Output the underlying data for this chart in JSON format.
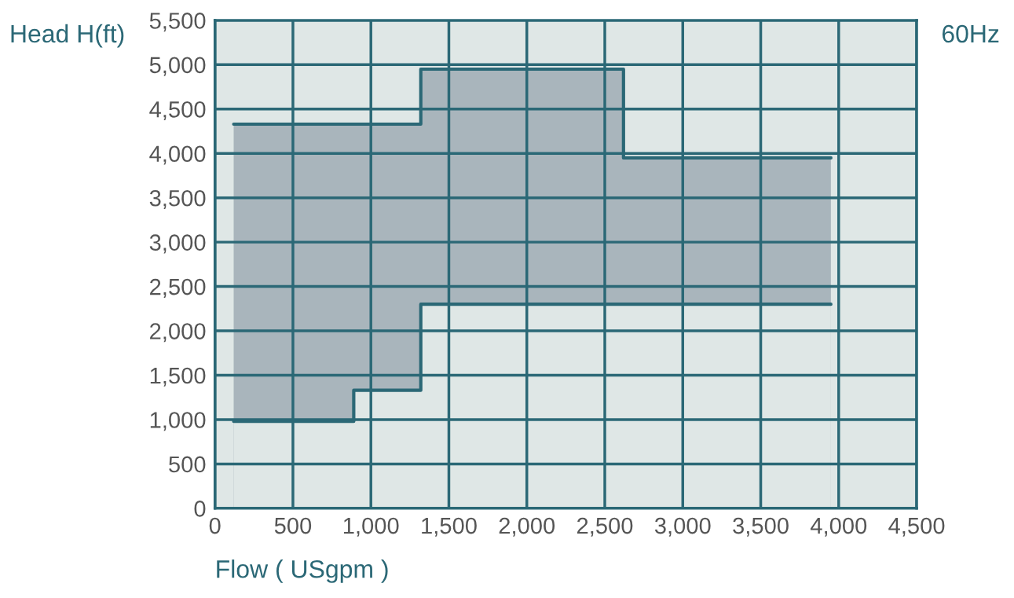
{
  "chart_data": {
    "type": "area",
    "xlabel": "Flow ( USgpm )",
    "ylabel": "Head H(ft)",
    "annotations": [
      "60Hz"
    ],
    "series": [
      {
        "color": "#a9b5bc",
        "x": [
          120,
          1320,
          2620,
          3950
        ],
        "values": [
          4330,
          4950,
          3950,
          3950
        ]
      },
      {
        "color": "#dfe7e6",
        "x": [
          120,
          890,
          1320,
          3950
        ],
        "values": [
          980,
          1330,
          2300,
          2300
        ]
      },
      {
        "type": "step",
        "color": "#2b6876",
        "x": [
          120,
          1320,
          2620,
          3950
        ],
        "values": [
          4330,
          4950,
          3950,
          3950
        ]
      },
      {
        "type": "step",
        "color": "#2b6876",
        "x": [
          120,
          890,
          1320,
          3950
        ],
        "values": [
          980,
          1330,
          2300,
          2300
        ]
      }
    ],
    "xlim": [
      0,
      4500
    ],
    "ylim": [
      0,
      5500
    ],
    "xticks": [
      0,
      500,
      {
        "value": 1000,
        "label": "1,000"
      },
      {
        "value": 1500,
        "label": "1,500"
      },
      {
        "value": 2000,
        "label": "2,000"
      },
      {
        "value": 2500,
        "label": "2,500"
      },
      {
        "value": 3000,
        "label": "3,000"
      },
      {
        "value": 3500,
        "label": "3,500"
      },
      {
        "value": 4000,
        "label": "4,000"
      },
      {
        "value": 4500,
        "label": "4,500"
      }
    ],
    "yticks": [
      0,
      500,
      {
        "value": 1000,
        "label": "1,000"
      },
      {
        "value": 1500,
        "label": "1,500"
      },
      {
        "value": 2000,
        "label": "2,000"
      },
      {
        "value": 2500,
        "label": "2,500"
      },
      {
        "value": 3000,
        "label": "3,000"
      },
      {
        "value": 3500,
        "label": "3,500"
      },
      {
        "value": 4000,
        "label": "4,000"
      },
      {
        "value": 4500,
        "label": "4,500"
      },
      {
        "value": 5000,
        "label": "5,000"
      },
      {
        "value": 5500,
        "label": "5,500"
      }
    ],
    "grid": true,
    "legend": false
  }
}
